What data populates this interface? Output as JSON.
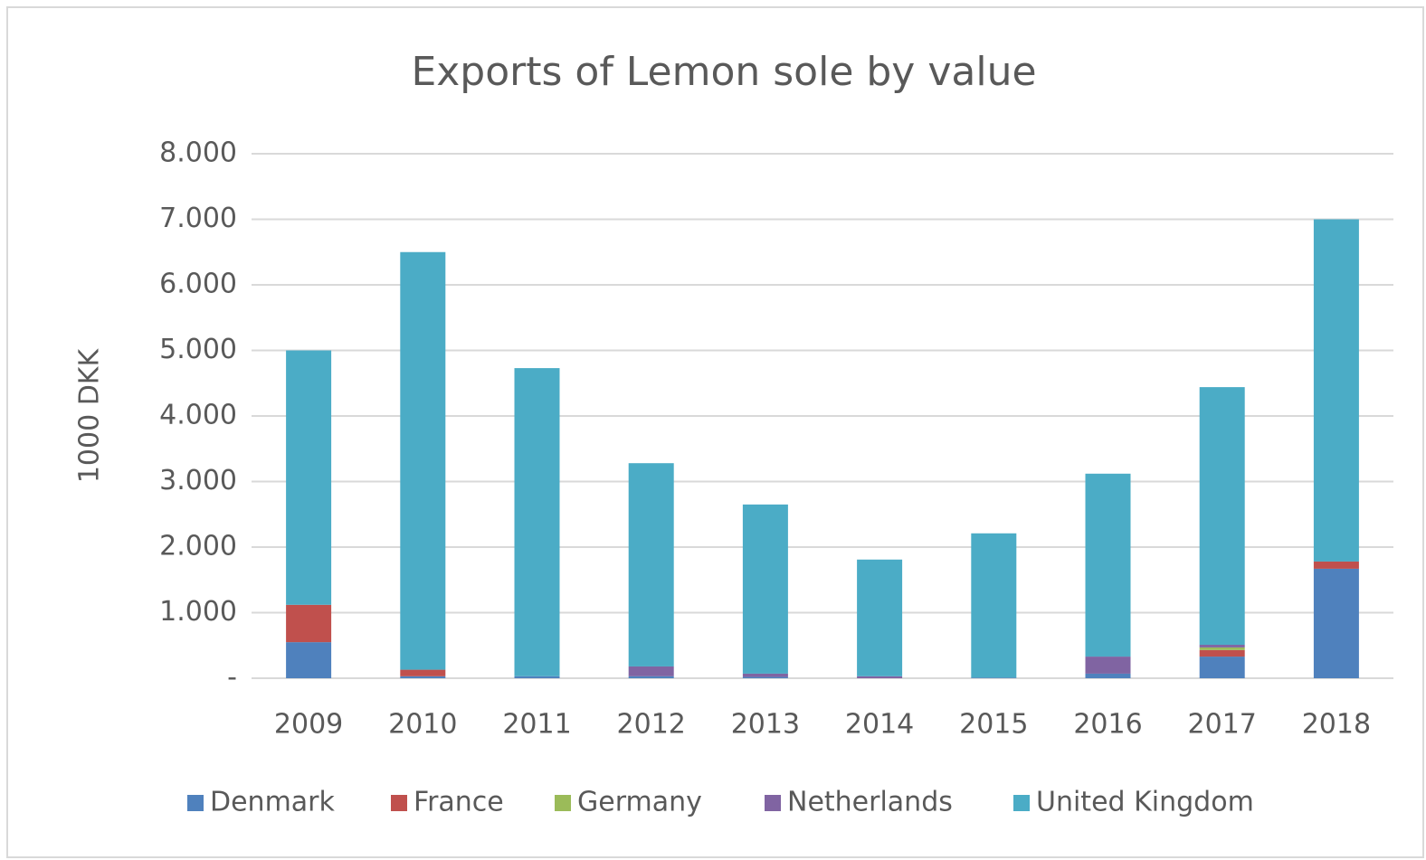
{
  "chart_data": {
    "type": "stacked_bar",
    "title": "Exports of Lemon sole by value",
    "y_label": "1000 DKK",
    "categories": [
      "2009",
      "2010",
      "2011",
      "2012",
      "2013",
      "2014",
      "2015",
      "2016",
      "2017",
      "2018"
    ],
    "series": [
      {
        "name": "Denmark",
        "color": "#4f81bd",
        "values": [
          550,
          30,
          30,
          30,
          20,
          0,
          10,
          70,
          330,
          1670
        ]
      },
      {
        "name": "France",
        "color": "#c0504d",
        "values": [
          570,
          100,
          0,
          0,
          0,
          0,
          0,
          0,
          100,
          110
        ]
      },
      {
        "name": "Germany",
        "color": "#9bbb59",
        "values": [
          0,
          0,
          0,
          0,
          0,
          0,
          0,
          0,
          40,
          0
        ]
      },
      {
        "name": "Netherlands",
        "color": "#8064a2",
        "values": [
          0,
          0,
          0,
          150,
          50,
          30,
          0,
          260,
          40,
          0
        ]
      },
      {
        "name": "United Kingdom",
        "color": "#4bacc6",
        "values": [
          3880,
          6370,
          4700,
          3100,
          2580,
          1780,
          2200,
          2790,
          3930,
          5220
        ]
      }
    ],
    "ylim": [
      0,
      8000
    ],
    "yticks": [
      {
        "value": 0,
        "label": "-"
      },
      {
        "value": 1000,
        "label": "1.000"
      },
      {
        "value": 2000,
        "label": "2.000"
      },
      {
        "value": 3000,
        "label": "3.000"
      },
      {
        "value": 4000,
        "label": "4.000"
      },
      {
        "value": 5000,
        "label": "5.000"
      },
      {
        "value": 6000,
        "label": "6.000"
      },
      {
        "value": 7000,
        "label": "7.000"
      },
      {
        "value": 8000,
        "label": "8.000"
      }
    ],
    "grid": true,
    "legend": "bottom"
  }
}
